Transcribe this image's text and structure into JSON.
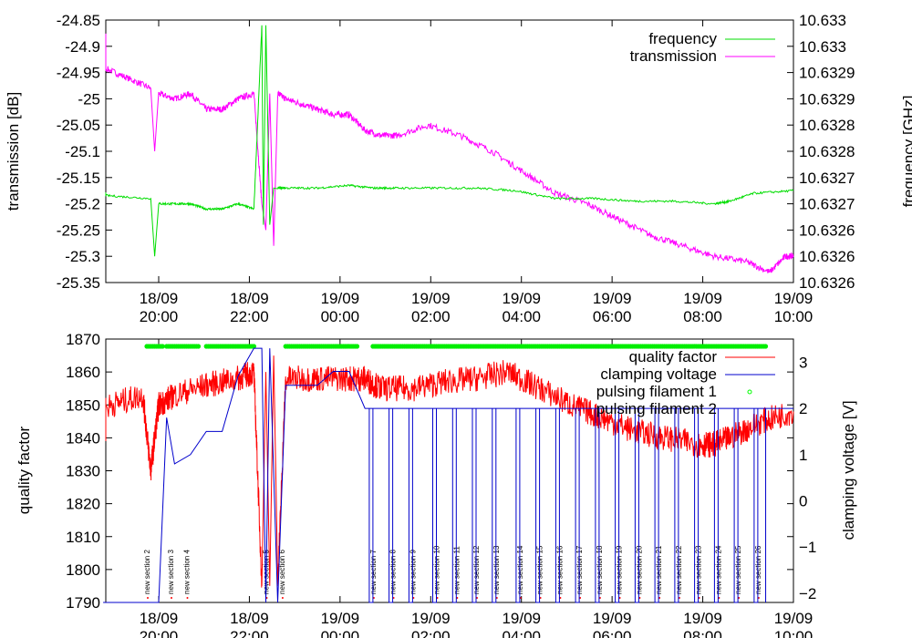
{
  "chart_data": [
    {
      "type": "line",
      "ylabel": "transmission [dB]",
      "y2label": "frequency [GHz]",
      "yticks": [
        "-24.85",
        "-24.9",
        "-24.95",
        "-25",
        "-25.05",
        "-25.1",
        "-25.15",
        "-25.2",
        "-25.25",
        "-25.3",
        "-25.35"
      ],
      "y2ticks": [
        "10.633",
        "10.633",
        "10.6329",
        "10.6329",
        "10.6328",
        "10.6328",
        "10.6327",
        "10.6327",
        "10.6326",
        "10.6326",
        "10.6326"
      ],
      "xticks": [
        {
          "date": "18/09",
          "time": "20:00"
        },
        {
          "date": "18/09",
          "time": "22:00"
        },
        {
          "date": "19/09",
          "time": "00:00"
        },
        {
          "date": "19/09",
          "time": "02:00"
        },
        {
          "date": "19/09",
          "time": "04:00"
        },
        {
          "date": "19/09",
          "time": "06:00"
        },
        {
          "date": "19/09",
          "time": "08:00"
        },
        {
          "date": "19/09",
          "time": "10:00"
        }
      ],
      "xrange_hours": [
        18.8,
        28.0
      ],
      "ylim": [
        -25.35,
        -24.85
      ],
      "legend": "top-right",
      "grid": false,
      "series": [
        {
          "name": "frequency",
          "color": "#00dd00",
          "axis": "y2",
          "x": [
            18.8,
            19.0,
            19.4,
            19.9,
            19.95,
            20.0,
            20.2,
            20.4,
            20.6,
            20.8,
            21.0,
            21.2,
            21.3,
            21.32,
            21.35,
            21.4,
            21.45,
            21.5,
            21.6,
            22.0,
            22.4,
            22.7,
            23.0,
            23.5,
            24.0,
            24.5,
            25.0,
            25.5,
            26.0,
            26.5,
            27.0,
            27.2,
            27.5,
            28.0
          ],
          "y": [
            -25.18,
            -25.18,
            -25.185,
            -25.19,
            -25.3,
            -25.2,
            -25.2,
            -25.2,
            -25.21,
            -25.21,
            -25.2,
            -25.21,
            -24.86,
            -25.24,
            -24.86,
            -25.24,
            -25.17,
            -25.17,
            -25.17,
            -25.17,
            -25.165,
            -25.17,
            -25.17,
            -25.17,
            -25.17,
            -25.175,
            -25.19,
            -25.19,
            -25.195,
            -25.195,
            -25.2,
            -25.195,
            -25.18,
            -25.175
          ]
        },
        {
          "name": "transmission",
          "color": "#ff00ff",
          "axis": "y",
          "x": [
            18.8,
            19.0,
            19.3,
            19.6,
            19.9,
            19.95,
            20.0,
            20.2,
            20.4,
            20.6,
            20.8,
            21.0,
            21.2,
            21.3,
            21.35,
            21.4,
            21.45,
            21.5,
            21.6,
            21.8,
            22.0,
            22.2,
            22.4,
            22.6,
            22.8,
            23.0,
            23.4,
            23.8,
            24.2,
            24.6,
            25.0,
            25.4,
            25.8,
            26.2,
            26.6,
            27.0,
            27.4,
            27.7,
            27.9,
            28.0
          ],
          "y": [
            -24.88,
            -24.92,
            -24.94,
            -24.96,
            -24.98,
            -25.1,
            -24.99,
            -25.0,
            -24.99,
            -25.02,
            -25.02,
            -25.0,
            -24.99,
            -25.2,
            -25.25,
            -24.99,
            -25.28,
            -24.99,
            -25.0,
            -25.01,
            -25.02,
            -25.03,
            -25.03,
            -25.06,
            -25.07,
            -25.07,
            -25.05,
            -25.07,
            -25.1,
            -25.14,
            -25.18,
            -25.2,
            -25.23,
            -25.26,
            -25.28,
            -25.3,
            -25.31,
            -25.33,
            -25.3,
            -25.3
          ]
        }
      ]
    },
    {
      "type": "line",
      "ylabel": "quality factor",
      "y2label": "clamping voltage [V]",
      "yticks": [
        "1870",
        "1860",
        "1850",
        "1840",
        "1830",
        "1820",
        "1810",
        "1800",
        "1790"
      ],
      "y2ticks": [
        "3",
        "2",
        "1",
        "0",
        "−1",
        "−2"
      ],
      "xticks": [
        {
          "date": "18/09",
          "time": "20:00"
        },
        {
          "date": "18/09",
          "time": "22:00"
        },
        {
          "date": "19/09",
          "time": "00:00"
        },
        {
          "date": "19/09",
          "time": "02:00"
        },
        {
          "date": "19/09",
          "time": "04:00"
        },
        {
          "date": "19/09",
          "time": "06:00"
        },
        {
          "date": "19/09",
          "time": "08:00"
        },
        {
          "date": "19/09",
          "time": "10:00"
        }
      ],
      "xrange_hours": [
        18.8,
        28.0
      ],
      "ylim": [
        1790,
        1870
      ],
      "y2lim": [
        -2.2,
        3.5
      ],
      "legend": "top-right",
      "grid": false,
      "series": [
        {
          "name": "quality factor",
          "color": "#ff0000",
          "axis": "y",
          "x": [
            18.8,
            19.0,
            19.4,
            19.8,
            19.9,
            20.0,
            20.2,
            20.6,
            21.0,
            21.2,
            21.3,
            21.35,
            21.4,
            21.45,
            21.5,
            21.6,
            22.0,
            22.4,
            22.6,
            22.8,
            23.2,
            23.6,
            24.0,
            24.4,
            24.8,
            25.2,
            25.6,
            26.0,
            26.4,
            26.8,
            27.0,
            27.2,
            27.6,
            28.0
          ],
          "y": [
            1842,
            1845,
            1850,
            1853,
            1830,
            1850,
            1853,
            1856,
            1858,
            1860,
            1795,
            1860,
            1795,
            1865,
            1795,
            1858,
            1858,
            1858,
            1858,
            1855,
            1855,
            1857,
            1858,
            1860,
            1855,
            1850,
            1846,
            1842,
            1840,
            1838,
            1838,
            1840,
            1845,
            1848
          ]
        },
        {
          "name": "clamping voltage",
          "color": "#0000cc",
          "axis": "y2",
          "x": [
            19.3,
            20.0,
            20.1,
            20.2,
            20.4,
            20.6,
            20.8,
            21.0,
            21.2,
            21.3,
            21.35,
            21.4,
            21.5,
            21.6,
            22.0,
            22.2,
            22.4,
            22.6,
            22.8,
            28.0
          ],
          "y": [
            -2.2,
            -2.2,
            1.8,
            0.8,
            1.0,
            1.5,
            1.5,
            2.7,
            3.3,
            3.3,
            -2.2,
            3.3,
            -2.2,
            2.5,
            2.5,
            2.8,
            2.8,
            2.0,
            2.0,
            2.0
          ]
        },
        {
          "name": "pulsing filament 1",
          "color": "#00ff00",
          "axis": "y",
          "marker": "dot"
        },
        {
          "name": "pulsing filament 2",
          "color": "#00ff00",
          "axis": "y",
          "marker": "dot"
        }
      ],
      "sections": [
        {
          "label": "new section 2",
          "x": 19.85
        },
        {
          "label": "new section 3",
          "x": 20.15
        },
        {
          "label": "new section 4",
          "x": 20.35
        },
        {
          "label": "new section 5",
          "x": 21.35
        },
        {
          "label": "new section 6",
          "x": 21.55
        },
        {
          "label": "new section 7",
          "x": 22.7
        },
        {
          "label": "new section 8",
          "x": 22.95
        },
        {
          "label": "new section 9",
          "x": 23.2
        },
        {
          "label": "new section 10",
          "x": 23.5
        },
        {
          "label": "new section 11",
          "x": 23.75
        },
        {
          "label": "new section 12",
          "x": 24.0
        },
        {
          "label": "new section 13",
          "x": 24.25
        },
        {
          "label": "new section 14",
          "x": 24.55
        },
        {
          "label": "new section 15",
          "x": 24.8
        },
        {
          "label": "new section 16",
          "x": 25.05
        },
        {
          "label": "new section 17",
          "x": 25.3
        },
        {
          "label": "new section 18",
          "x": 25.55
        },
        {
          "label": "new section 19",
          "x": 25.8
        },
        {
          "label": "new section 20",
          "x": 26.05
        },
        {
          "label": "new section 21",
          "x": 26.3
        },
        {
          "label": "new section 22",
          "x": 26.55
        },
        {
          "label": "new section 23",
          "x": 26.8
        },
        {
          "label": "new section 24",
          "x": 27.05
        },
        {
          "label": "new section 25",
          "x": 27.3
        },
        {
          "label": "new section 26",
          "x": 27.55
        }
      ]
    }
  ]
}
